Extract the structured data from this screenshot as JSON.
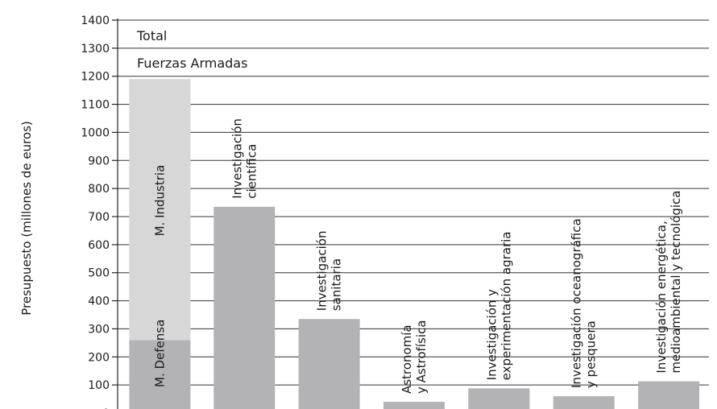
{
  "chart_data": {
    "type": "bar",
    "title": "",
    "ylabel": "Presupuesto (millones de euros)",
    "xlabel": "",
    "ylim": [
      0,
      1400
    ],
    "yticks": [
      0,
      100,
      200,
      300,
      400,
      500,
      600,
      700,
      800,
      900,
      1000,
      1100,
      1200,
      1300,
      1400
    ],
    "legend_lines": [
      "Total",
      "Fuerzas Armadas"
    ],
    "stacked_bar": {
      "segments": [
        {
          "name": "M. Defensa",
          "value": 260,
          "color": "#b3b3b5"
        },
        {
          "name": "M. Industria",
          "value": 930,
          "color": "#d7d7d8"
        }
      ],
      "total": 1190
    },
    "categories": [
      {
        "label": [
          "Investigación",
          "científica"
        ],
        "value": 735
      },
      {
        "label": [
          "Investigación",
          "sanitaria"
        ],
        "value": 335
      },
      {
        "label": [
          "Astronomía",
          "y Astrofísica"
        ],
        "value": 40
      },
      {
        "label": [
          "Investigación y",
          "experimentación agraria"
        ],
        "value": 88
      },
      {
        "label": [
          "Investigación oceanográfica",
          "y pesquera"
        ],
        "value": 60
      },
      {
        "label": [
          "Investigación energética,",
          "medioambiental y tecnológica"
        ],
        "value": 113
      }
    ],
    "bar_color": "#b3b3b5",
    "grid": true
  }
}
